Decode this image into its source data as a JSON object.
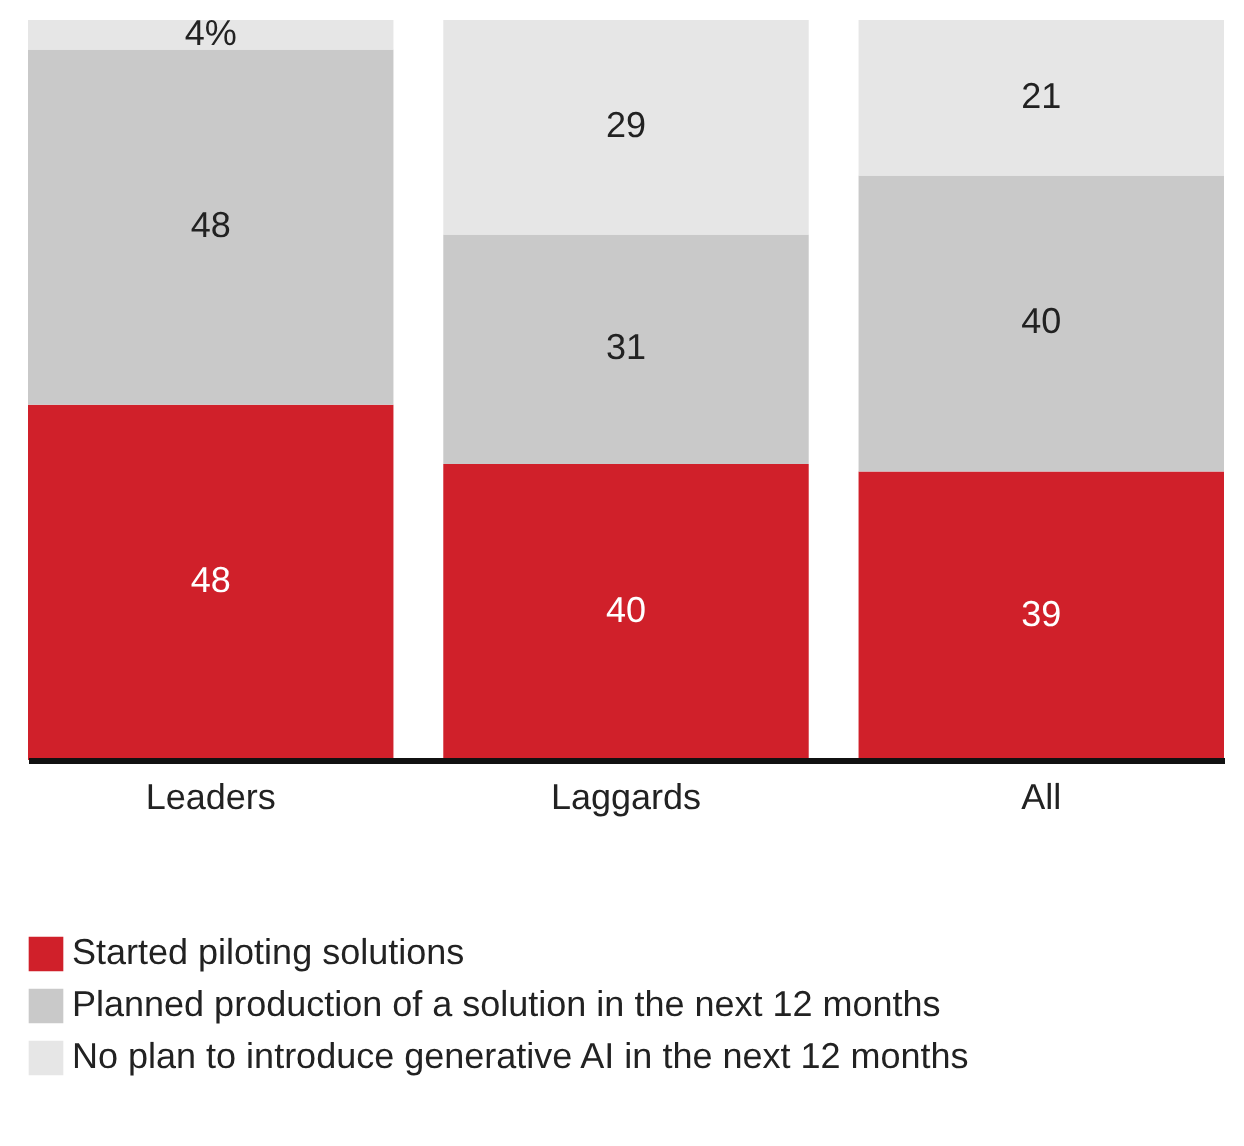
{
  "chart_data": {
    "type": "bar",
    "stacked": true,
    "categories": [
      "Leaders",
      "Laggards",
      "All"
    ],
    "series": [
      {
        "name": "Started piloting solutions",
        "color": "#d0202a",
        "values": [
          48,
          40,
          39
        ]
      },
      {
        "name": "Planned production of a solution in the next 12 months",
        "color": "#c9c9c9",
        "values": [
          48,
          31,
          40
        ]
      },
      {
        "name": "No plan to introduce generative AI in the next 12 months",
        "color": "#e6e6e6",
        "values": [
          4,
          29,
          21
        ],
        "value_labels": [
          "4%",
          "29",
          "21"
        ]
      }
    ],
    "ylim": [
      0,
      100
    ],
    "tick_labels": "x",
    "data_labels": true,
    "legend": "bottom"
  }
}
